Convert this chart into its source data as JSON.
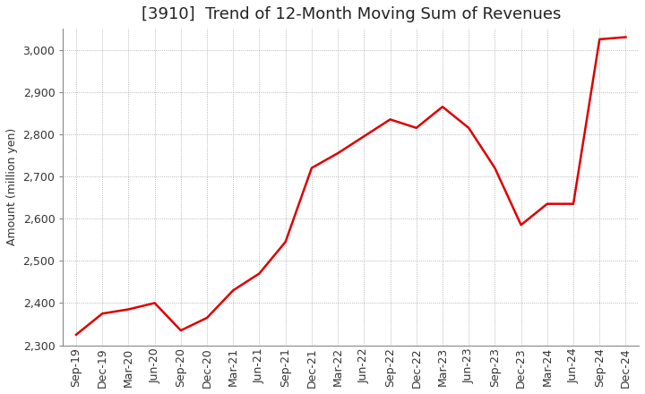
{
  "title": "[3910]  Trend of 12-Month Moving Sum of Revenues",
  "ylabel": "Amount (million yen)",
  "line_color": "#DD0000",
  "background_color": "#FFFFFF",
  "grid_color": "#999999",
  "ylim": [
    2300,
    3050
  ],
  "yticks": [
    2300,
    2400,
    2500,
    2600,
    2700,
    2800,
    2900,
    3000
  ],
  "labels": [
    "Sep-19",
    "Dec-19",
    "Mar-20",
    "Jun-20",
    "Sep-20",
    "Dec-20",
    "Mar-21",
    "Jun-21",
    "Sep-21",
    "Dec-21",
    "Mar-22",
    "Jun-22",
    "Sep-22",
    "Dec-22",
    "Mar-23",
    "Jun-23",
    "Sep-23",
    "Dec-23",
    "Mar-24",
    "Jun-24",
    "Sep-24",
    "Dec-24"
  ],
  "values": [
    2325,
    2375,
    2385,
    2400,
    2335,
    2365,
    2430,
    2470,
    2545,
    2720,
    2755,
    2795,
    2835,
    2815,
    2865,
    2815,
    2720,
    2585,
    2635,
    2635,
    3025,
    3030
  ],
  "title_fontsize": 13,
  "tick_fontsize": 9,
  "ylabel_fontsize": 9
}
